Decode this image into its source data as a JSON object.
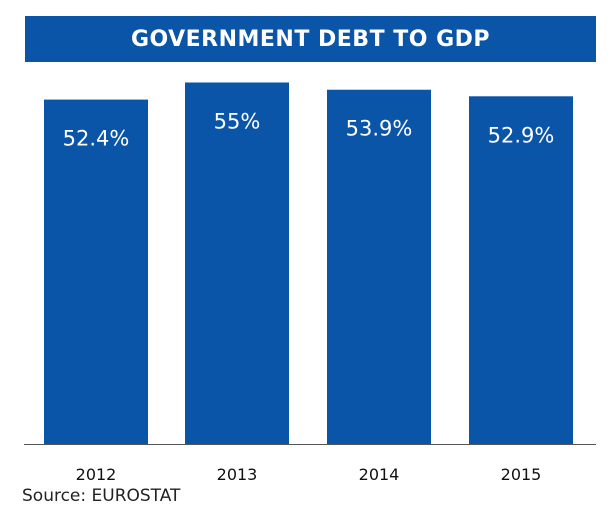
{
  "colors": {
    "bar": "#0a55a8",
    "title_bg": "#0a55a8",
    "axis": "#555555",
    "label_inside": "#ffffff",
    "tick_label": "#111111"
  },
  "chart_data": {
    "type": "bar",
    "title": "GOVERNMENT DEBT TO GDP",
    "categories": [
      "2012",
      "2013",
      "2014",
      "2015"
    ],
    "values": [
      52.4,
      55,
      53.9,
      52.9
    ],
    "data_labels": [
      "52.4%",
      "55%",
      "53.9%",
      "52.9%"
    ],
    "unit": "%",
    "xlabel": "",
    "ylabel": "",
    "ylim": [
      0,
      56
    ],
    "grid": false,
    "legend": "none",
    "source": "Source: EUROSTAT"
  }
}
